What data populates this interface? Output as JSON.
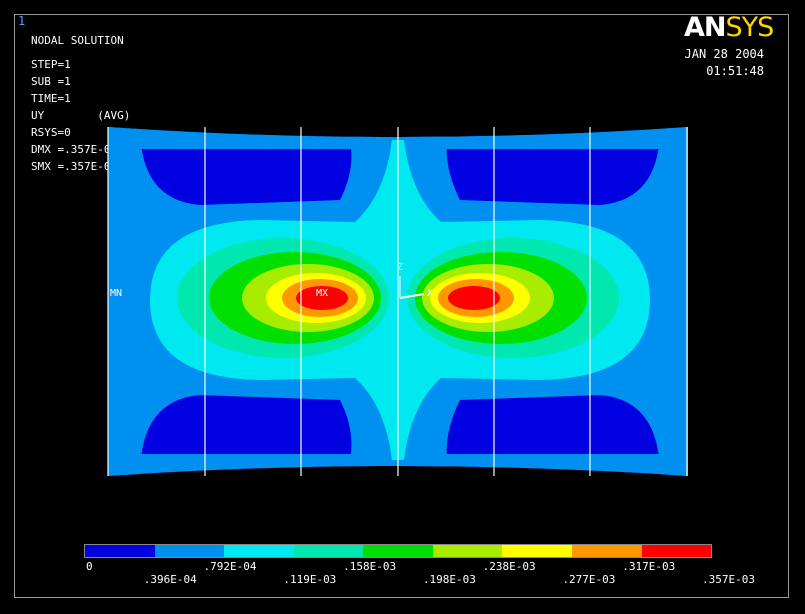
{
  "window_number": "1",
  "logo": {
    "an": "AN",
    "sys": "SYS"
  },
  "info": {
    "line1": "NODAL SOLUTION",
    "line2": "STEP=1",
    "line3": "SUB =1",
    "line4": "TIME=1",
    "line5": "UY        (AVG)",
    "line6": "RSYS=0",
    "line7": "DMX =.357E-03",
    "line8": "SMX =.357E-03"
  },
  "date": "JAN 28 2004",
  "time": "01:51:48",
  "labels": {
    "min": "MN",
    "max": "MX",
    "axis_y": "Z",
    "axis_x": "X"
  },
  "legend": {
    "colors": [
      "#0000e0",
      "#0090f0",
      "#00e8f0",
      "#00e8b0",
      "#00e000",
      "#a8ec00",
      "#ffff00",
      "#ff9800",
      "#ff0000"
    ],
    "ticks": [
      "0",
      ".396E-04",
      ".792E-04",
      ".119E-03",
      ".158E-03",
      ".198E-03",
      ".238E-03",
      ".277E-03",
      ".317E-03",
      ".357E-03"
    ]
  }
}
